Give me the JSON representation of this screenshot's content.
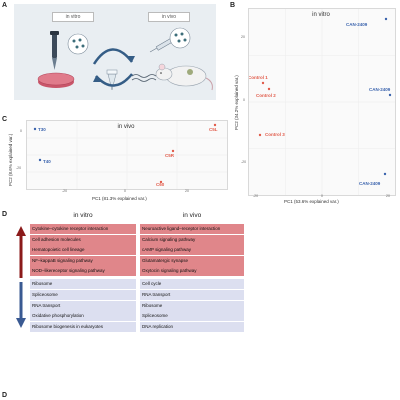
{
  "panel_letters": {
    "a": "A",
    "b": "B",
    "c": "C",
    "d": "D",
    "d2": "D"
  },
  "panel_a": {
    "label_in_vitro": "in vitro",
    "label_in_vivo": "in vivo"
  },
  "chart_data": [
    {
      "panel": "B",
      "type": "scatter",
      "title": "in vitro",
      "xlabel": "PC1 (53.6% explained var.)",
      "ylabel": "PC2 (34.2% explained var.)",
      "xticks": [
        "-20",
        "0",
        "20"
      ],
      "yticks": [
        "-20",
        "0",
        "20"
      ],
      "points": [
        {
          "label": "CAN-2409",
          "group": "CAN-2409"
        },
        {
          "label": "CAN-2409",
          "group": "CAN-2409"
        },
        {
          "label": "CAN-2409",
          "group": "CAN-2409"
        },
        {
          "label": "Control 1",
          "group": "Control"
        },
        {
          "label": "Control 2",
          "group": "Control"
        },
        {
          "label": "Control 3",
          "group": "Control"
        }
      ],
      "colors": {
        "CAN-2409": "#3a63ad",
        "Control": "#e15b4a"
      }
    },
    {
      "panel": "C",
      "type": "scatter",
      "title": "in vivo",
      "xlabel": "PC1 (81.3% explained var.)",
      "ylabel": "PC2 (8.6% explained var.)",
      "xticks": [
        "-20",
        "0",
        "20"
      ],
      "yticks": [
        "0",
        "-20"
      ],
      "points": [
        {
          "label": "T30",
          "group": "T"
        },
        {
          "label": "T40",
          "group": "T"
        },
        {
          "label": "C5L",
          "group": "C"
        },
        {
          "label": "C5R",
          "group": "C"
        },
        {
          "label": "C60",
          "group": "C"
        }
      ],
      "colors": {
        "T": "#3a63ad",
        "C": "#e15b4a"
      }
    }
  ],
  "panel_d": {
    "left_title": "in vitro",
    "right_title": "in vivo",
    "left_up": [
      "Cytokine–cytokine receptor interaction",
      "Cell adhesion molecules",
      "Hematopoietic cell lineage",
      "NF–kappaB signaling pathway",
      "NOD–likereceptor signaling pathway"
    ],
    "left_down": [
      "Ribosome",
      "Spliceosome",
      "RNA transport",
      "Oxidative phosphorylation",
      "Ribosome biogenesis in eukaryotes"
    ],
    "right_up": [
      "Neuroactive ligand–receptor interaction",
      "Calcium signaling pathway",
      "cAMP signaling pathway",
      "Glutamatergic synapse",
      "Oxytocin signaling pathway"
    ],
    "right_down": [
      "Cell cycle",
      "RNA transport",
      "Ribosome",
      "Spliceosome",
      "DNA replication"
    ],
    "colors": {
      "up": "#e0868a",
      "down": "#dcdff0",
      "up_arrow": "#8b1a1a",
      "down_arrow": "#3a5a92"
    }
  }
}
